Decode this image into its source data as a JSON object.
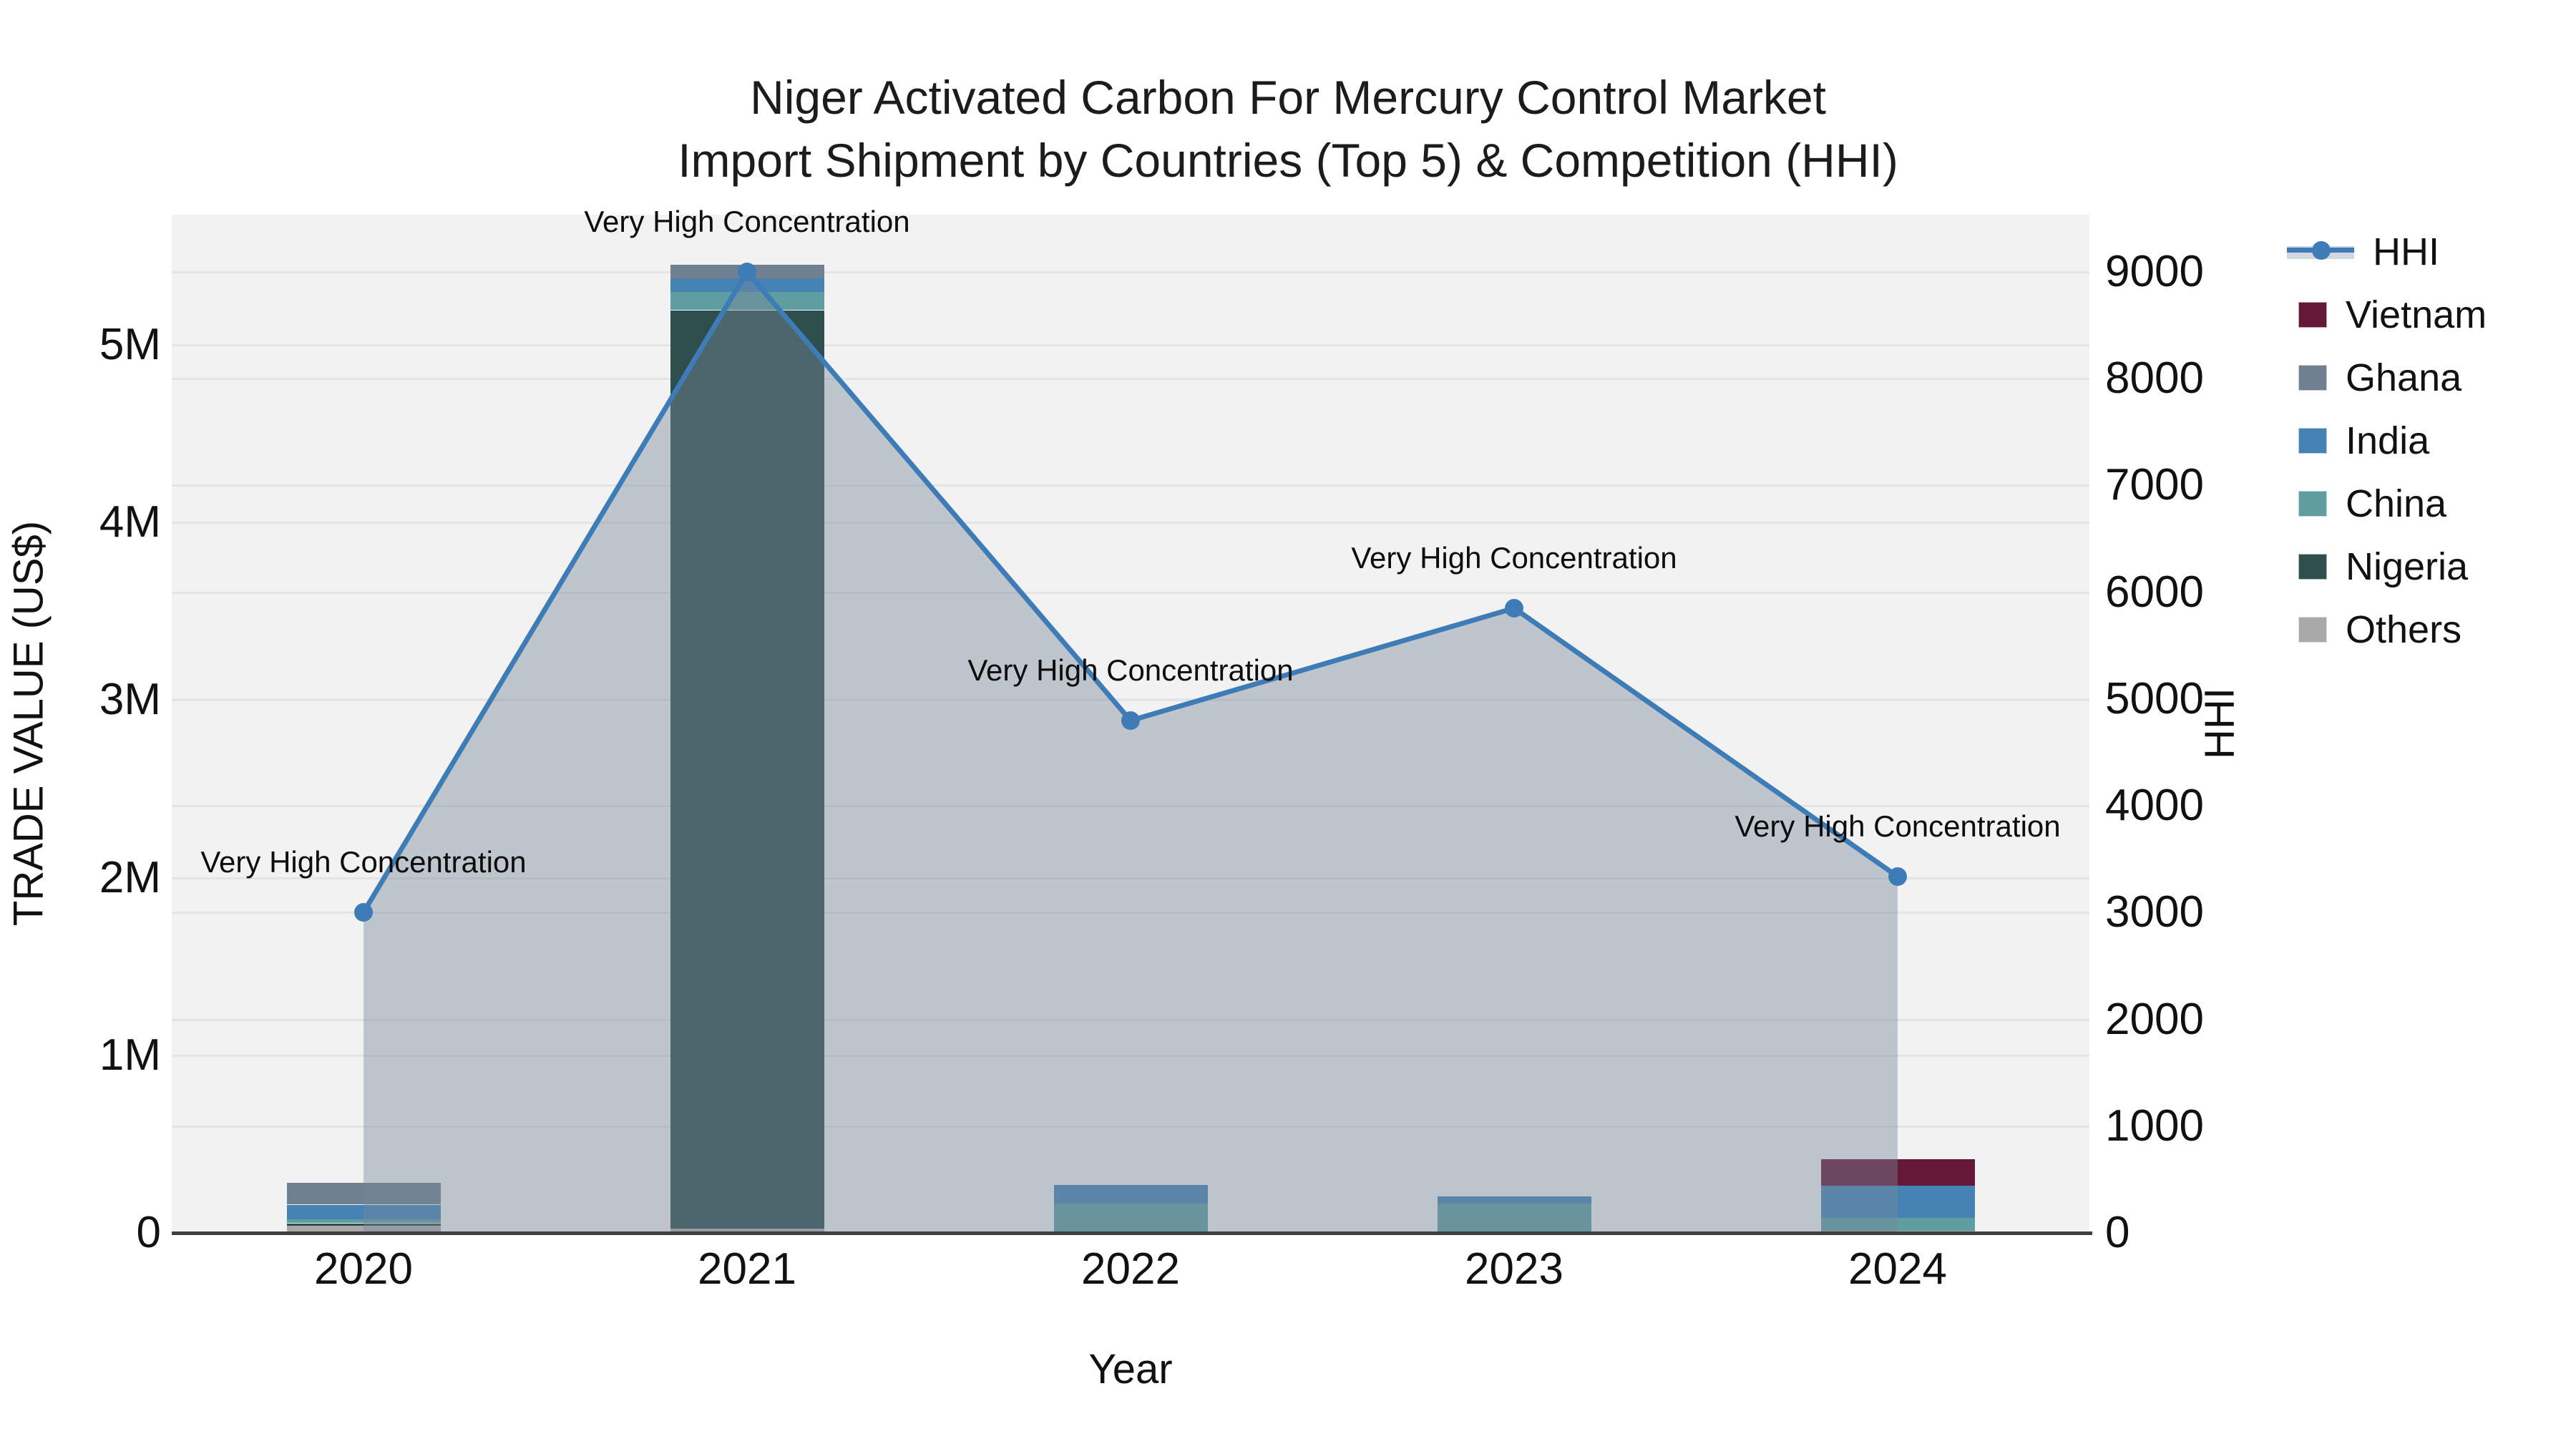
{
  "title": {
    "line1": "Niger Activated Carbon For Mercury Control Market",
    "line2": "Import Shipment by Countries (Top 5) & Competition (HHI)"
  },
  "axes": {
    "y_left": {
      "title": "TRADE VALUE (US$)",
      "tick_labels": [
        "0",
        "1M",
        "2M",
        "3M",
        "4M",
        "5M"
      ],
      "tick_values": [
        0,
        1000000,
        2000000,
        3000000,
        4000000,
        5000000
      ]
    },
    "y_right": {
      "title": "HHI",
      "tick_labels": [
        "0",
        "1000",
        "2000",
        "3000",
        "4000",
        "5000",
        "6000",
        "7000",
        "8000",
        "9000"
      ],
      "tick_values": [
        0,
        1000,
        2000,
        3000,
        4000,
        5000,
        6000,
        7000,
        8000,
        9000
      ]
    },
    "x": {
      "title": "Year",
      "categories": [
        "2020",
        "2021",
        "2022",
        "2023",
        "2024"
      ]
    }
  },
  "legend": {
    "items": [
      {
        "label": "HHI",
        "type": "line",
        "color": "#3e7cb8"
      },
      {
        "label": "Vietnam",
        "type": "box",
        "color": "#661838"
      },
      {
        "label": "Ghana",
        "type": "box",
        "color": "#708090"
      },
      {
        "label": "India",
        "type": "box",
        "color": "#4682b4"
      },
      {
        "label": "China",
        "type": "box",
        "color": "#5f9ea0"
      },
      {
        "label": "Nigeria",
        "type": "box",
        "color": "#2f4f4f"
      },
      {
        "label": "Others",
        "type": "box",
        "color": "#a9a9a9"
      }
    ]
  },
  "chart_data": {
    "type": [
      "bar",
      "line"
    ],
    "title": "Niger Activated Carbon For Mercury Control Market — Import Shipment by Countries (Top 5) & Competition (HHI)",
    "categories": [
      "2020",
      "2021",
      "2022",
      "2023",
      "2024"
    ],
    "bar_stack_order_bottom_to_top": [
      "Others",
      "Nigeria",
      "China",
      "India",
      "Ghana",
      "Vietnam"
    ],
    "series": [
      {
        "name": "Others",
        "color": "#a9a9a9",
        "values": [
          42000,
          25000,
          0,
          0,
          12000
        ]
      },
      {
        "name": "Nigeria",
        "color": "#2f4f4f",
        "values": [
          12000,
          5170000,
          0,
          0,
          0
        ]
      },
      {
        "name": "China",
        "color": "#5f9ea0",
        "values": [
          25000,
          105000,
          165000,
          165000,
          72000
        ]
      },
      {
        "name": "India",
        "color": "#4682b4",
        "values": [
          80000,
          75000,
          105000,
          40000,
          181000
        ]
      },
      {
        "name": "Ghana",
        "color": "#708090",
        "values": [
          122000,
          77000,
          0,
          0,
          0
        ]
      },
      {
        "name": "Vietnam",
        "color": "#661838",
        "values": [
          0,
          0,
          0,
          0,
          150000
        ]
      }
    ],
    "line_series": {
      "name": "HHI",
      "color": "#3e7cb8",
      "fill_color": "rgba(119,136,153,0.42)",
      "values": [
        3000,
        9000,
        4800,
        5850,
        3340
      ],
      "point_annotation": "Very High Concentration"
    },
    "xlabel": "Year",
    "ylabel_left": "TRADE VALUE (US$)",
    "ylabel_right": "HHI",
    "ylim_left": [
      0,
      5733000
    ],
    "ylim_right": [
      0,
      9536
    ],
    "grid": true,
    "legend_position": "right",
    "plot_bg": "#f2f2f2"
  }
}
